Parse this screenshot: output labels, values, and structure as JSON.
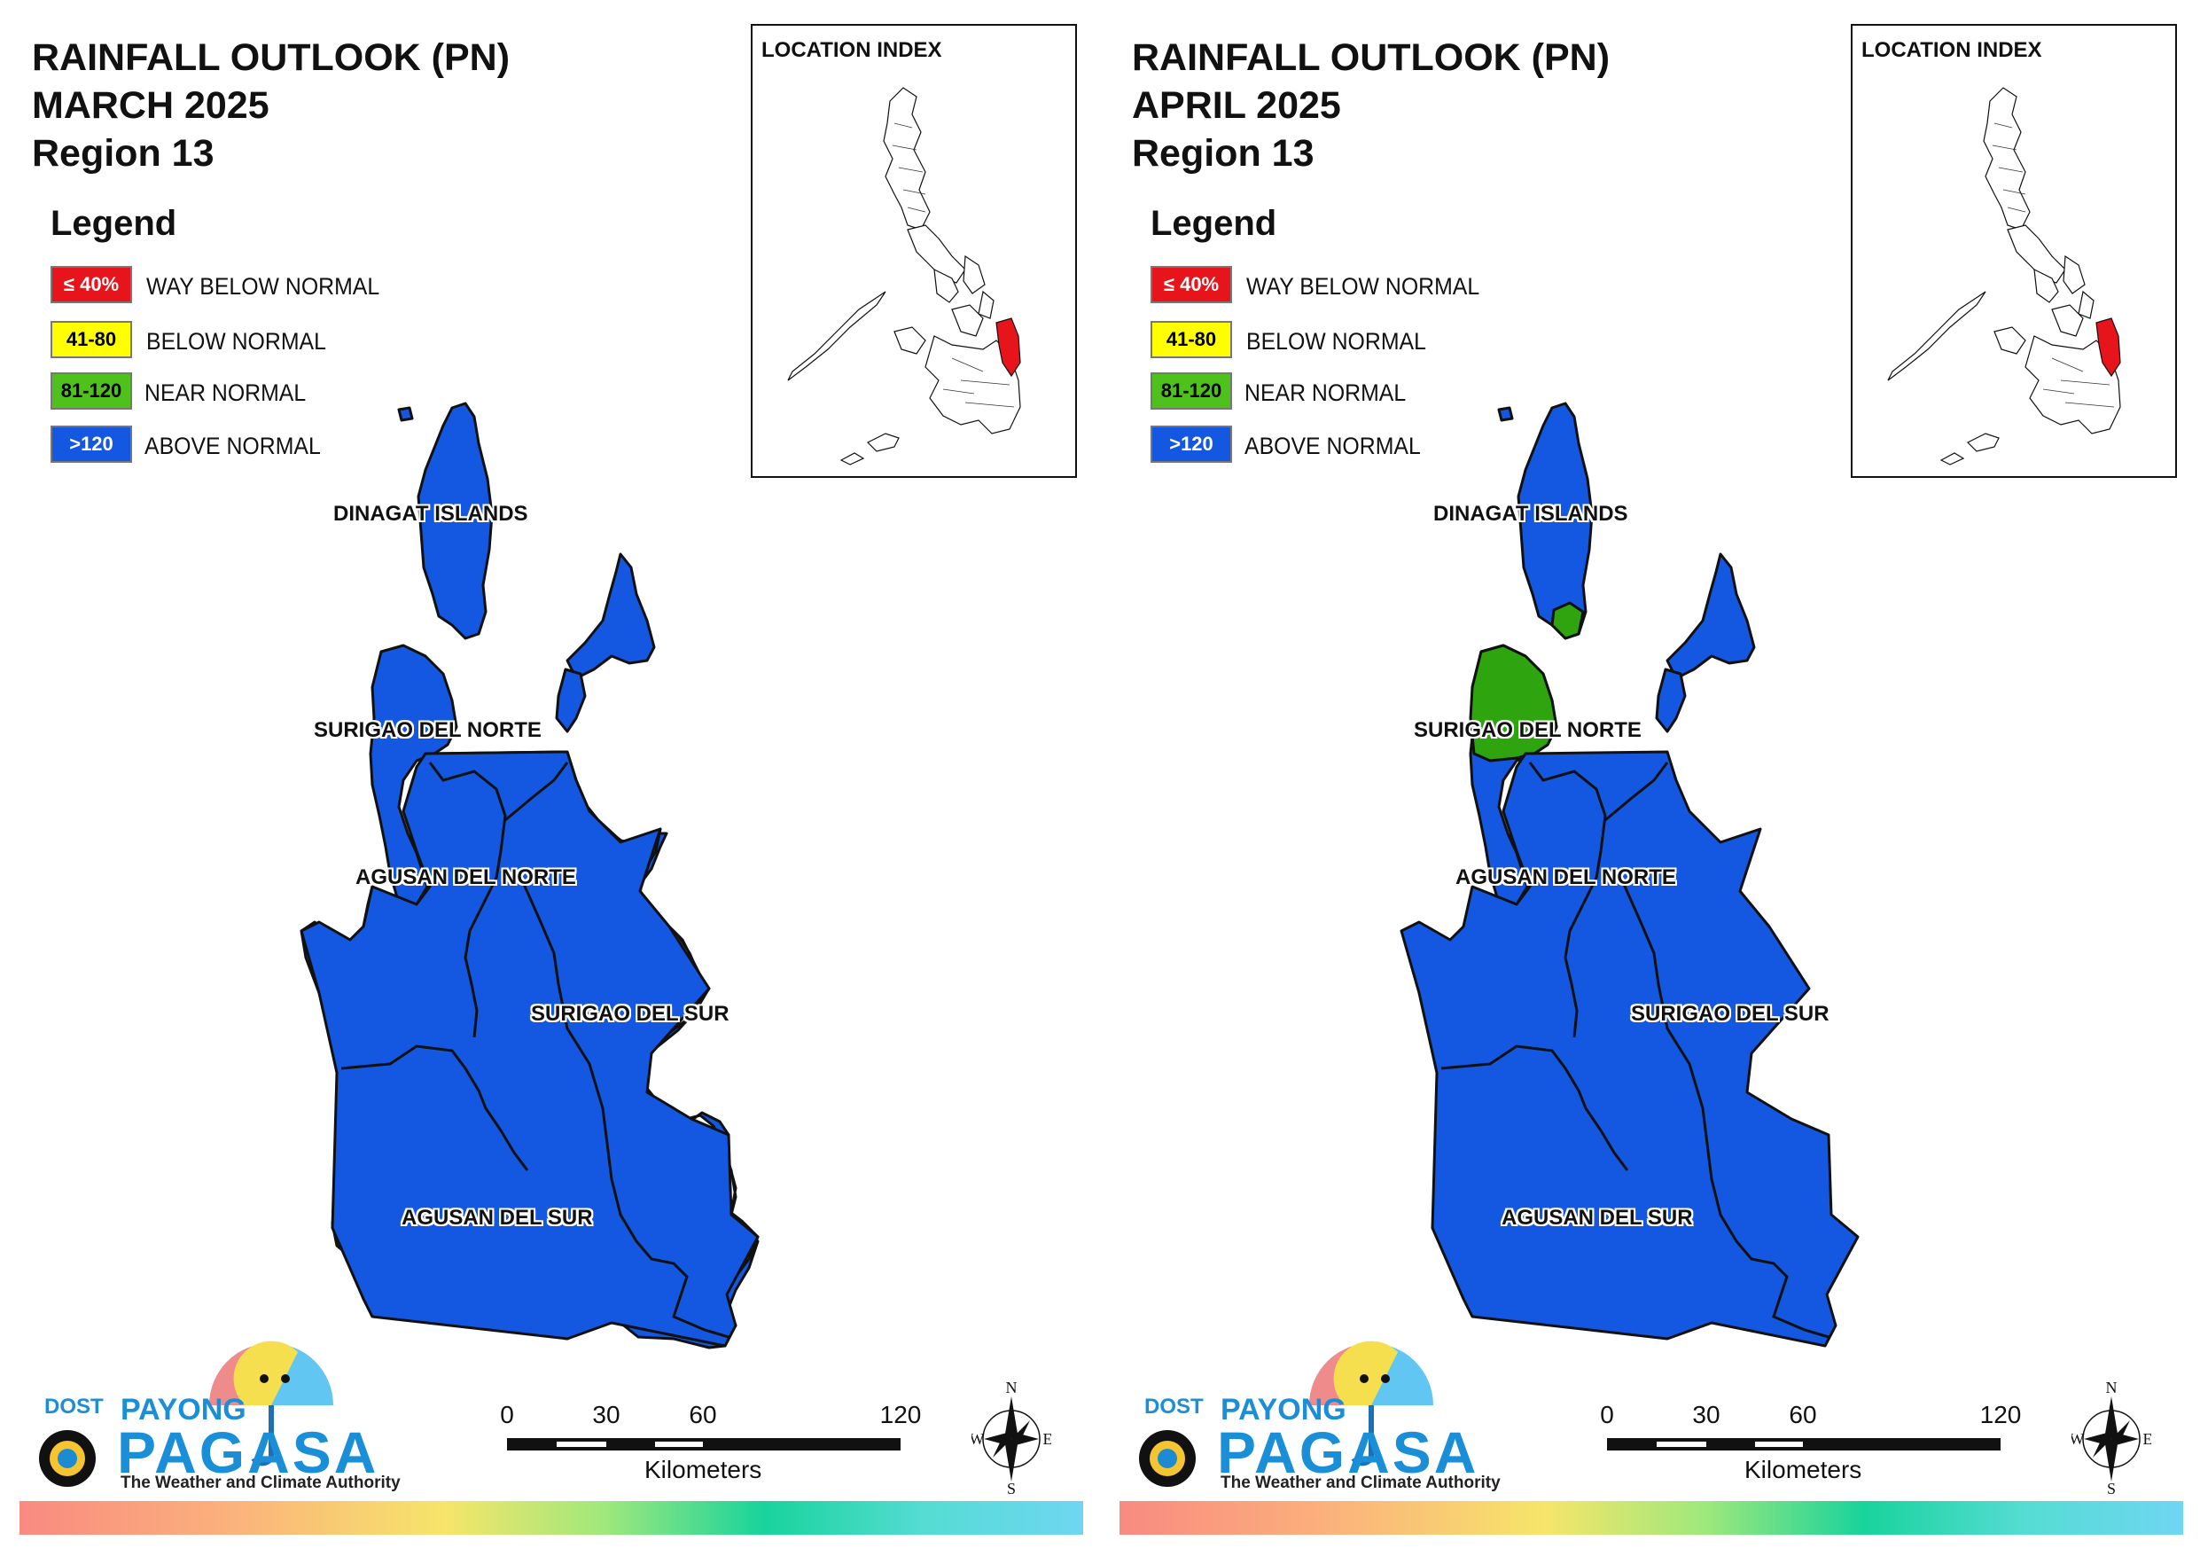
{
  "panels": [
    {
      "id": "march",
      "title_line1": "RAINFALL OUTLOOK (PN)",
      "title_line2": "MARCH 2025",
      "title_line3": "Region 13",
      "provinces": {
        "dinagat_islands": {
          "name": "DINAGAT ISLANDS",
          "category": "ABOVE NORMAL",
          "color": "#1457e0"
        },
        "surigao_del_norte": {
          "name": "SURIGAO DEL NORTE",
          "category": "ABOVE NORMAL",
          "color": "#1457e0"
        },
        "agusan_del_norte": {
          "name": "AGUSAN DEL NORTE",
          "category": "ABOVE NORMAL",
          "color": "#1457e0"
        },
        "surigao_del_sur": {
          "name": "SURIGAO DEL SUR",
          "category": "ABOVE NORMAL",
          "color": "#1457e0"
        },
        "agusan_del_sur": {
          "name": "AGUSAN DEL SUR",
          "category": "ABOVE NORMAL",
          "color": "#1457e0"
        }
      }
    },
    {
      "id": "april",
      "title_line1": "RAINFALL OUTLOOK (PN)",
      "title_line2": "APRIL 2025",
      "title_line3": "Region 13",
      "provinces": {
        "dinagat_islands": {
          "name": "DINAGAT ISLANDS",
          "category": "ABOVE NORMAL",
          "color": "#1457e0"
        },
        "surigao_del_norte": {
          "name": "SURIGAO DEL NORTE",
          "category": "ABOVE NORMAL",
          "color": "#1457e0",
          "near_normal_area_color": "#2ea40f"
        },
        "agusan_del_norte": {
          "name": "AGUSAN DEL NORTE",
          "category": "ABOVE NORMAL",
          "color": "#1457e0"
        },
        "surigao_del_sur": {
          "name": "SURIGAO DEL SUR",
          "category": "ABOVE NORMAL",
          "color": "#1457e0"
        },
        "agusan_del_sur": {
          "name": "AGUSAN DEL SUR",
          "category": "ABOVE NORMAL",
          "color": "#1457e0"
        }
      }
    }
  ],
  "legend": {
    "title": "Legend",
    "items": [
      {
        "range": "≤ 40%",
        "label": "WAY BELOW NORMAL",
        "color": "#e8141b",
        "text_color": "#ffffff"
      },
      {
        "range": "41-80",
        "label": "BELOW NORMAL",
        "color": "#ffff00",
        "text_color": "#000000"
      },
      {
        "range": "81-120",
        "label": "NEAR NORMAL",
        "color": "#4fc11d",
        "text_color": "#000000"
      },
      {
        "range": ">120",
        "label": "ABOVE NORMAL",
        "color": "#1457e0",
        "text_color": "#ffffff"
      }
    ]
  },
  "location_index": {
    "title": "LOCATION INDEX",
    "highlight_color": "#e8141b"
  },
  "scale_bar": {
    "ticks": [
      "0",
      "30",
      "60",
      "120"
    ],
    "unit": "Kilometers"
  },
  "north_arrow": {
    "n": "N",
    "s": "S",
    "e": "E",
    "w": "W"
  },
  "logo": {
    "dost": "DOST",
    "payong": "PAYONG",
    "pagasa": "PAGASA",
    "tagline": "The Weather and Climate Authority"
  }
}
